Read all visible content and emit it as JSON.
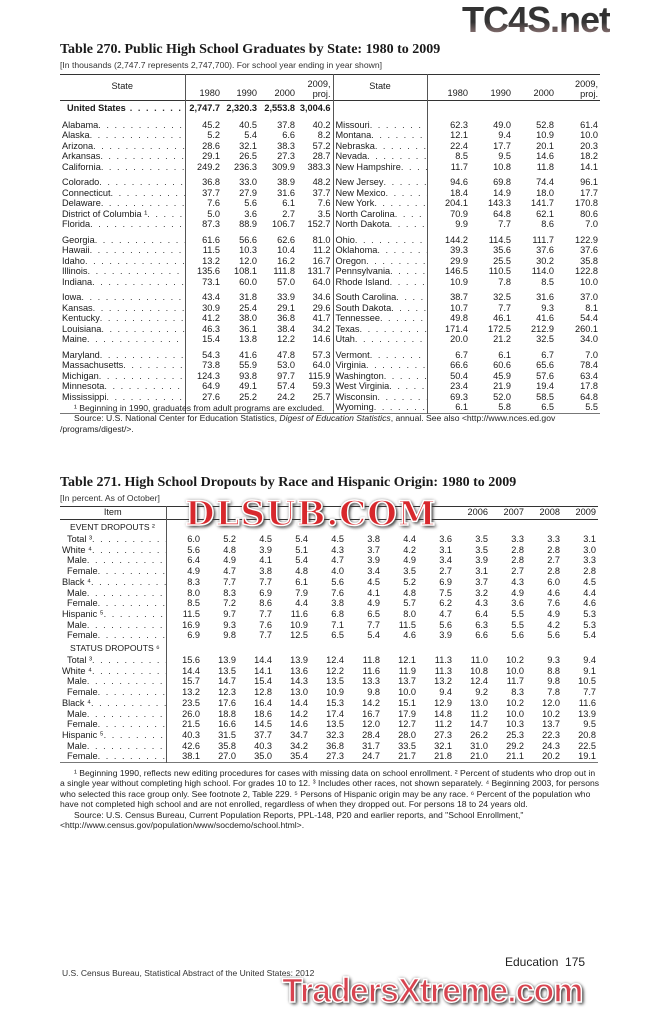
{
  "watermarks": {
    "top": "TC4S.net",
    "middle": "DLSUB.COM",
    "bottom": "TradersXtreme.com"
  },
  "table270": {
    "title": "Table 270. Public High School Graduates by State: 1980 to 2009",
    "subtitle": "[In thousands (2,747.7 represents 2,747,700). For school year ending in year shown]",
    "headers": [
      "State",
      "1980",
      "1990",
      "2000",
      "2009, proj."
    ],
    "us_row": {
      "state": "United States",
      "values": [
        "2,747.7",
        "2,320.3",
        "2,553.8",
        "3,004.6"
      ]
    },
    "left": [
      [
        [
          "Alabama",
          "45.2",
          "40.5",
          "37.8",
          "40.2"
        ],
        [
          "Alaska",
          "5.2",
          "5.4",
          "6.6",
          "8.2"
        ],
        [
          "Arizona",
          "28.6",
          "32.1",
          "38.3",
          "57.2"
        ],
        [
          "Arkansas",
          "29.1",
          "26.5",
          "27.3",
          "28.7"
        ],
        [
          "California",
          "249.2",
          "236.3",
          "309.9",
          "383.3"
        ]
      ],
      [
        [
          "Colorado",
          "36.8",
          "33.0",
          "38.9",
          "48.2"
        ],
        [
          "Connecticut",
          "37.7",
          "27.9",
          "31.6",
          "37.7"
        ],
        [
          "Delaware",
          "7.6",
          "5.6",
          "6.1",
          "7.6"
        ],
        [
          "District of Columbia ¹",
          "5.0",
          "3.6",
          "2.7",
          "3.5"
        ],
        [
          "Florida",
          "87.3",
          "88.9",
          "106.7",
          "152.7"
        ]
      ],
      [
        [
          "Georgia",
          "61.6",
          "56.6",
          "62.6",
          "81.0"
        ],
        [
          "Hawaii",
          "11.5",
          "10.3",
          "10.4",
          "11.2"
        ],
        [
          "Idaho",
          "13.2",
          "12.0",
          "16.2",
          "16.7"
        ],
        [
          "Illinois",
          "135.6",
          "108.1",
          "111.8",
          "131.7"
        ],
        [
          "Indiana",
          "73.1",
          "60.0",
          "57.0",
          "64.0"
        ]
      ],
      [
        [
          "Iowa",
          "43.4",
          "31.8",
          "33.9",
          "34.6"
        ],
        [
          "Kansas",
          "30.9",
          "25.4",
          "29.1",
          "29.6"
        ],
        [
          "Kentucky",
          "41.2",
          "38.0",
          "36.8",
          "41.7"
        ],
        [
          "Louisiana",
          "46.3",
          "36.1",
          "38.4",
          "34.2"
        ],
        [
          "Maine",
          "15.4",
          "13.8",
          "12.2",
          "14.6"
        ]
      ],
      [
        [
          "Maryland",
          "54.3",
          "41.6",
          "47.8",
          "57.3"
        ],
        [
          "Massachusetts",
          "73.8",
          "55.9",
          "53.0",
          "64.0"
        ],
        [
          "Michigan",
          "124.3",
          "93.8",
          "97.7",
          "115.9"
        ],
        [
          "Minnesota",
          "64.9",
          "49.1",
          "57.4",
          "59.3"
        ],
        [
          "Mississippi",
          "27.6",
          "25.2",
          "24.2",
          "25.7"
        ]
      ]
    ],
    "right": [
      [
        [
          "Missouri",
          "62.3",
          "49.0",
          "52.8",
          "61.4"
        ],
        [
          "Montana",
          "12.1",
          "9.4",
          "10.9",
          "10.0"
        ],
        [
          "Nebraska",
          "22.4",
          "17.7",
          "20.1",
          "20.3"
        ],
        [
          "Nevada",
          "8.5",
          "9.5",
          "14.6",
          "18.2"
        ],
        [
          "New Hampshire",
          "11.7",
          "10.8",
          "11.8",
          "14.1"
        ]
      ],
      [
        [
          "New Jersey",
          "94.6",
          "69.8",
          "74.4",
          "96.1"
        ],
        [
          "New Mexico",
          "18.4",
          "14.9",
          "18.0",
          "17.7"
        ],
        [
          "New York",
          "204.1",
          "143.3",
          "141.7",
          "170.8"
        ],
        [
          "North Carolina",
          "70.9",
          "64.8",
          "62.1",
          "80.6"
        ],
        [
          "North Dakota",
          "9.9",
          "7.7",
          "8.6",
          "7.0"
        ]
      ],
      [
        [
          "Ohio",
          "144.2",
          "114.5",
          "111.7",
          "122.9"
        ],
        [
          "Oklahoma",
          "39.3",
          "35.6",
          "37.6",
          "37.6"
        ],
        [
          "Oregon",
          "29.9",
          "25.5",
          "30.2",
          "35.8"
        ],
        [
          "Pennsylvania",
          "146.5",
          "110.5",
          "114.0",
          "122.8"
        ],
        [
          "Rhode Island",
          "10.9",
          "7.8",
          "8.5",
          "10.0"
        ]
      ],
      [
        [
          "South Carolina",
          "38.7",
          "32.5",
          "31.6",
          "37.0"
        ],
        [
          "South Dakota",
          "10.7",
          "7.7",
          "9.3",
          "8.1"
        ],
        [
          "Tennessee",
          "49.8",
          "46.1",
          "41.6",
          "54.4"
        ],
        [
          "Texas",
          "171.4",
          "172.5",
          "212.9",
          "260.1"
        ],
        [
          "Utah",
          "20.0",
          "21.2",
          "32.5",
          "34.0"
        ]
      ],
      [
        [
          "Vermont",
          "6.7",
          "6.1",
          "6.7",
          "7.0"
        ],
        [
          "Virginia",
          "66.6",
          "60.6",
          "65.6",
          "78.4"
        ],
        [
          "Washington",
          "50.4",
          "45.9",
          "57.6",
          "63.4"
        ],
        [
          "West Virginia",
          "23.4",
          "21.9",
          "19.4",
          "17.8"
        ],
        [
          "Wisconsin",
          "69.3",
          "52.0",
          "58.5",
          "64.8"
        ],
        [
          "Wyoming",
          "6.1",
          "5.8",
          "6.5",
          "5.5"
        ]
      ]
    ],
    "footnote": "¹ Beginning in 1990, graduates from adult programs are excluded.",
    "source_prefix": "Source: U.S. National Center for Education Statistics, ",
    "source_italic": "Digest of Education Statistics",
    "source_suffix": ", annual. See also <http://www.nces.ed.gov /programs/digest/>."
  },
  "table271": {
    "title": "Table 271. High School Dropouts by Race and Hispanic Origin: 1980 to 2009",
    "subtitle": "[In percent. As of October]",
    "item_header": "Item",
    "year_headers": [
      "",
      "",
      "",
      "",
      "",
      "",
      "",
      "",
      "2006",
      "2007",
      "2008",
      "2009"
    ],
    "sections": [
      {
        "label": "EVENT DROPOUTS ²",
        "rows": [
          [
            "Total ³",
            1,
            [
              "6.0",
              "5.2",
              "4.5",
              "5.4",
              "4.5",
              "3.8",
              "4.4",
              "3.6",
              "3.5",
              "3.3",
              "3.3",
              "3.1"
            ]
          ],
          [
            "White ⁴",
            0,
            [
              "5.6",
              "4.8",
              "3.9",
              "5.1",
              "4.3",
              "3.7",
              "4.2",
              "3.1",
              "3.5",
              "2.8",
              "2.8",
              "3.0"
            ]
          ],
          [
            "Male",
            1,
            [
              "6.4",
              "4.9",
              "4.1",
              "5.4",
              "4.7",
              "3.9",
              "4.9",
              "3.4",
              "3.9",
              "2.8",
              "2.7",
              "3.3"
            ]
          ],
          [
            "Female",
            1,
            [
              "4.9",
              "4.7",
              "3.8",
              "4.8",
              "4.0",
              "3.4",
              "3.5",
              "2.7",
              "3.1",
              "2.7",
              "2.8",
              "2.8"
            ]
          ],
          [
            "Black ⁴",
            0,
            [
              "8.3",
              "7.7",
              "7.7",
              "6.1",
              "5.6",
              "4.5",
              "5.2",
              "6.9",
              "3.7",
              "4.3",
              "6.0",
              "4.5"
            ]
          ],
          [
            "Male",
            1,
            [
              "8.0",
              "8.3",
              "6.9",
              "7.9",
              "7.6",
              "4.1",
              "4.8",
              "7.5",
              "3.2",
              "4.9",
              "4.6",
              "4.4"
            ]
          ],
          [
            "Female",
            1,
            [
              "8.5",
              "7.2",
              "8.6",
              "4.4",
              "3.8",
              "4.9",
              "5.7",
              "6.2",
              "4.3",
              "3.6",
              "7.6",
              "4.6"
            ]
          ],
          [
            "Hispanic ⁵",
            0,
            [
              "11.5",
              "9.7",
              "7.7",
              "11.6",
              "6.8",
              "6.5",
              "8.0",
              "4.7",
              "6.4",
              "5.5",
              "4.9",
              "5.3"
            ]
          ],
          [
            "Male",
            1,
            [
              "16.9",
              "9.3",
              "7.6",
              "10.9",
              "7.1",
              "7.7",
              "11.5",
              "5.6",
              "6.3",
              "5.5",
              "4.2",
              "5.3"
            ]
          ],
          [
            "Female",
            1,
            [
              "6.9",
              "9.8",
              "7.7",
              "12.5",
              "6.5",
              "5.4",
              "4.6",
              "3.9",
              "6.6",
              "5.6",
              "5.6",
              "5.4"
            ]
          ]
        ]
      },
      {
        "label": "STATUS DROPOUTS ⁶",
        "rows": [
          [
            "Total ³",
            1,
            [
              "15.6",
              "13.9",
              "14.4",
              "13.9",
              "12.4",
              "11.8",
              "12.1",
              "11.3",
              "11.0",
              "10.2",
              "9.3",
              "9.4"
            ]
          ],
          [
            "White ⁴",
            0,
            [
              "14.4",
              "13.5",
              "14.1",
              "13.6",
              "12.2",
              "11.6",
              "11.9",
              "11.3",
              "10.8",
              "10.0",
              "8.8",
              "9.1"
            ]
          ],
          [
            "Male",
            1,
            [
              "15.7",
              "14.7",
              "15.4",
              "14.3",
              "13.5",
              "13.3",
              "13.7",
              "13.2",
              "12.4",
              "11.7",
              "9.8",
              "10.5"
            ]
          ],
          [
            "Female",
            1,
            [
              "13.2",
              "12.3",
              "12.8",
              "13.0",
              "10.9",
              "9.8",
              "10.0",
              "9.4",
              "9.2",
              "8.3",
              "7.8",
              "7.7"
            ]
          ],
          [
            "Black ⁴",
            0,
            [
              "23.5",
              "17.6",
              "16.4",
              "14.4",
              "15.3",
              "14.2",
              "15.1",
              "12.9",
              "13.0",
              "10.2",
              "12.0",
              "11.6"
            ]
          ],
          [
            "Male",
            1,
            [
              "26.0",
              "18.8",
              "18.6",
              "14.2",
              "17.4",
              "16.7",
              "17.9",
              "14.8",
              "11.2",
              "10.0",
              "10.2",
              "13.9"
            ]
          ],
          [
            "Female",
            1,
            [
              "21.5",
              "16.6",
              "14.5",
              "14.6",
              "13.5",
              "12.0",
              "12.7",
              "11.2",
              "14.7",
              "10.3",
              "13.7",
              "9.5"
            ]
          ],
          [
            "Hispanic ⁵",
            0,
            [
              "40.3",
              "31.5",
              "37.7",
              "34.7",
              "32.3",
              "28.4",
              "28.0",
              "27.3",
              "26.2",
              "25.3",
              "22.3",
              "20.8"
            ]
          ],
          [
            "Male",
            1,
            [
              "42.6",
              "35.8",
              "40.3",
              "34.2",
              "36.8",
              "31.7",
              "33.5",
              "32.1",
              "31.0",
              "29.2",
              "24.3",
              "22.5"
            ]
          ],
          [
            "Female",
            1,
            [
              "38.1",
              "27.0",
              "35.0",
              "35.4",
              "27.3",
              "24.7",
              "21.7",
              "21.8",
              "21.0",
              "21.1",
              "20.2",
              "19.1"
            ]
          ]
        ]
      }
    ],
    "footnotes": "¹ Beginning 1990, reflects new editing procedures for cases with missing data on school enrollment. ² Percent of students who drop out in a single year without completing high school. For grades 10 to 12. ³ Includes other races, not shown separately. ⁴ Beginning 2003, for persons who selected this race group only. See footnote 2, Table 229. ⁵ Persons of Hispanic origin may be any race. ⁶ Percent of the population who have not completed high school and are not enrolled, regardless of when they dropped out. For persons 18 to 24 years old.",
    "source": "Source: U.S. Census Bureau, Current Population Reports, PPL-148, P20 and earlier reports, and \"School Enrollment,\" <http://www.census.gov/population/www/socdemo/school.html>."
  },
  "footer": {
    "left": "U.S. Census Bureau, Statistical Abstract of the United States: 2012",
    "right": "Education  175"
  }
}
